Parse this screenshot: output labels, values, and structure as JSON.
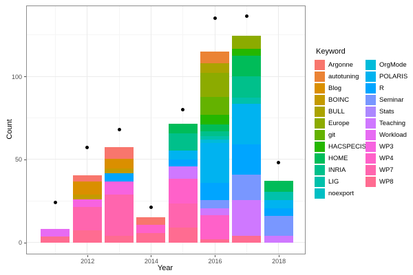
{
  "chart_data": {
    "type": "bar",
    "subtype": "stacked-bars-with-scatter-points",
    "title": "",
    "xlabel": "Year",
    "ylabel": "Count",
    "x_ticks": [
      "2012",
      "2014",
      "2016",
      "2018"
    ],
    "x_tick_years": [
      2012,
      2014,
      2016,
      2018
    ],
    "x_minor_years": [
      2011,
      2013,
      2015,
      2017
    ],
    "y_ticks": [
      "0",
      "50",
      "100"
    ],
    "y_tick_values": [
      0,
      50,
      100
    ],
    "y_minor_values": [
      25,
      75,
      125
    ],
    "ylim": [
      -7,
      142
    ],
    "grid": true,
    "legend_title": "Keyword",
    "legend_position": "right",
    "point_color": "#000000",
    "keywords": [
      {
        "name": "Argonne",
        "color": "#F8766D"
      },
      {
        "name": "autotuning",
        "color": "#EB8335"
      },
      {
        "name": "Blog",
        "color": "#DA8F00"
      },
      {
        "name": "BOINC",
        "color": "#C49A00"
      },
      {
        "name": "BULL",
        "color": "#ABA300"
      },
      {
        "name": "Europe",
        "color": "#8CAB00"
      },
      {
        "name": "git",
        "color": "#64B200"
      },
      {
        "name": "HACSPECIS",
        "color": "#24B700"
      },
      {
        "name": "HOME",
        "color": "#00BC59"
      },
      {
        "name": "INRIA",
        "color": "#00C08B"
      },
      {
        "name": "LIG",
        "color": "#00C1AB"
      },
      {
        "name": "noexport",
        "color": "#00BFC4"
      },
      {
        "name": "OrgMode",
        "color": "#00BBDA"
      },
      {
        "name": "POLARIS",
        "color": "#00B3F0"
      },
      {
        "name": "R",
        "color": "#00A5FF"
      },
      {
        "name": "Seminar",
        "color": "#7997FF"
      },
      {
        "name": "Stats",
        "color": "#AC88FF"
      },
      {
        "name": "Teaching",
        "color": "#CF78FF"
      },
      {
        "name": "Workload",
        "color": "#E76BF3"
      },
      {
        "name": "WP3",
        "color": "#F763E0"
      },
      {
        "name": "WP4",
        "color": "#FF61C9"
      },
      {
        "name": "WP7",
        "color": "#FF65AE"
      },
      {
        "name": "WP8",
        "color": "#FF6C91"
      }
    ],
    "bars": [
      {
        "year": 2011,
        "total": 8,
        "segments": [
          {
            "keyword": "WP8",
            "value": 3.5
          },
          {
            "keyword": "Workload",
            "value": 4.5
          }
        ]
      },
      {
        "year": 2012,
        "total": 40.5,
        "segments": [
          {
            "keyword": "WP8",
            "value": 7.5
          },
          {
            "keyword": "WP7",
            "value": 14
          },
          {
            "keyword": "WP3",
            "value": 4.5
          },
          {
            "keyword": "BOINC",
            "value": 3
          },
          {
            "keyword": "Blog",
            "value": 7.5
          },
          {
            "keyword": "Argonne",
            "value": 4
          }
        ]
      },
      {
        "year": 2013,
        "total": 57.5,
        "segments": [
          {
            "keyword": "WP8",
            "value": 4
          },
          {
            "keyword": "WP7",
            "value": 25
          },
          {
            "keyword": "WP3",
            "value": 7.5
          },
          {
            "keyword": "R",
            "value": 5
          },
          {
            "keyword": "BOINC",
            "value": 3
          },
          {
            "keyword": "Blog",
            "value": 6
          },
          {
            "keyword": "Argonne",
            "value": 7
          }
        ]
      },
      {
        "year": 2014,
        "total": 15,
        "segments": [
          {
            "keyword": "WP8",
            "value": 5.5
          },
          {
            "keyword": "WP4",
            "value": 5
          },
          {
            "keyword": "Argonne",
            "value": 4.5
          }
        ]
      },
      {
        "year": 2015,
        "total": 71.5,
        "segments": [
          {
            "keyword": "WP8",
            "value": 9
          },
          {
            "keyword": "WP7",
            "value": 14.5
          },
          {
            "keyword": "WP4",
            "value": 15
          },
          {
            "keyword": "Teaching",
            "value": 7.5
          },
          {
            "keyword": "R",
            "value": 4
          },
          {
            "keyword": "POLARIS",
            "value": 5.5
          },
          {
            "keyword": "INRIA",
            "value": 10
          },
          {
            "keyword": "HOME",
            "value": 6
          }
        ]
      },
      {
        "year": 2016,
        "total": 115,
        "segments": [
          {
            "keyword": "WP8",
            "value": 2
          },
          {
            "keyword": "WP4",
            "value": 14.5
          },
          {
            "keyword": "Teaching",
            "value": 4
          },
          {
            "keyword": "Seminar",
            "value": 5
          },
          {
            "keyword": "R",
            "value": 10.5
          },
          {
            "keyword": "POLARIS",
            "value": 24
          },
          {
            "keyword": "OrgMode",
            "value": 2
          },
          {
            "keyword": "LIG",
            "value": 2
          },
          {
            "keyword": "INRIA",
            "value": 3
          },
          {
            "keyword": "HOME",
            "value": 4
          },
          {
            "keyword": "HACSPECIS",
            "value": 6
          },
          {
            "keyword": "git",
            "value": 10.5
          },
          {
            "keyword": "Europe",
            "value": 14.5
          },
          {
            "keyword": "BULL",
            "value": 6
          },
          {
            "keyword": "autotuning",
            "value": 7
          }
        ]
      },
      {
        "year": 2017,
        "total": 124.5,
        "segments": [
          {
            "keyword": "WP8",
            "value": 4
          },
          {
            "keyword": "Teaching",
            "value": 21.5
          },
          {
            "keyword": "Seminar",
            "value": 15.5
          },
          {
            "keyword": "R",
            "value": 18
          },
          {
            "keyword": "POLARIS",
            "value": 24.5
          },
          {
            "keyword": "LIG",
            "value": 3.5
          },
          {
            "keyword": "INRIA",
            "value": 13
          },
          {
            "keyword": "HOME",
            "value": 12.5
          },
          {
            "keyword": "HACSPECIS",
            "value": 4
          },
          {
            "keyword": "Europe",
            "value": 8
          }
        ]
      },
      {
        "year": 2018,
        "total": 37,
        "segments": [
          {
            "keyword": "Teaching",
            "value": 4
          },
          {
            "keyword": "Seminar",
            "value": 12
          },
          {
            "keyword": "R",
            "value": 4.5
          },
          {
            "keyword": "POLARIS",
            "value": 5
          },
          {
            "keyword": "LIG",
            "value": 5
          },
          {
            "keyword": "HOME",
            "value": 6.5
          }
        ]
      }
    ],
    "points": [
      {
        "year": 2011,
        "value": 24
      },
      {
        "year": 2012,
        "value": 57
      },
      {
        "year": 2013,
        "value": 68
      },
      {
        "year": 2014,
        "value": 21
      },
      {
        "year": 2015,
        "value": 80
      },
      {
        "year": 2016,
        "value": 135
      },
      {
        "year": 2017,
        "value": 136
      },
      {
        "year": 2018,
        "value": 48
      }
    ]
  }
}
